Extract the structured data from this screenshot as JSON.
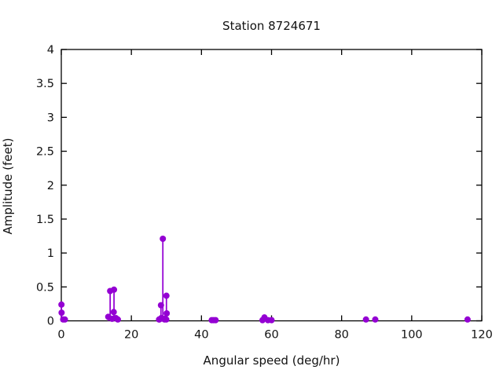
{
  "title": "Station 8724671",
  "chart_data": {
    "type": "scatter",
    "style": "impulses-with-points",
    "title": "Station 8724671",
    "xlabel": "Angular speed (deg/hr)",
    "ylabel": "Amplitude (feet)",
    "xlim": [
      0,
      120
    ],
    "ylim": [
      0,
      4
    ],
    "xticks": [
      0,
      20,
      40,
      60,
      80,
      100,
      120
    ],
    "yticks": [
      0,
      0.5,
      1,
      1.5,
      2,
      2.5,
      3,
      3.5,
      4
    ],
    "grid": false,
    "legend": "none",
    "point_color": "#9400d3",
    "points": [
      {
        "x": 0.04,
        "y": 0.24
      },
      {
        "x": 0.08,
        "y": 0.12
      },
      {
        "x": 0.54,
        "y": 0.02
      },
      {
        "x": 1.02,
        "y": 0.02
      },
      {
        "x": 13.4,
        "y": 0.06
      },
      {
        "x": 13.94,
        "y": 0.44
      },
      {
        "x": 14.5,
        "y": 0.03
      },
      {
        "x": 14.96,
        "y": 0.13
      },
      {
        "x": 15.04,
        "y": 0.46
      },
      {
        "x": 15.59,
        "y": 0.04
      },
      {
        "x": 16.14,
        "y": 0.02
      },
      {
        "x": 27.9,
        "y": 0.02
      },
      {
        "x": 27.97,
        "y": 0.02
      },
      {
        "x": 28.44,
        "y": 0.23
      },
      {
        "x": 28.51,
        "y": 0.04
      },
      {
        "x": 28.98,
        "y": 1.21
      },
      {
        "x": 29.46,
        "y": 0.02
      },
      {
        "x": 29.53,
        "y": 0.03
      },
      {
        "x": 29.96,
        "y": 0.02
      },
      {
        "x": 30.0,
        "y": 0.37
      },
      {
        "x": 30.08,
        "y": 0.11
      },
      {
        "x": 42.93,
        "y": 0.01
      },
      {
        "x": 43.48,
        "y": 0.01
      },
      {
        "x": 44.03,
        "y": 0.01
      },
      {
        "x": 57.42,
        "y": 0.01
      },
      {
        "x": 57.97,
        "y": 0.05
      },
      {
        "x": 58.98,
        "y": 0.01
      },
      {
        "x": 60.0,
        "y": 0.01
      },
      {
        "x": 86.95,
        "y": 0.02
      },
      {
        "x": 89.6,
        "y": 0.02
      },
      {
        "x": 115.94,
        "y": 0.02
      }
    ]
  }
}
